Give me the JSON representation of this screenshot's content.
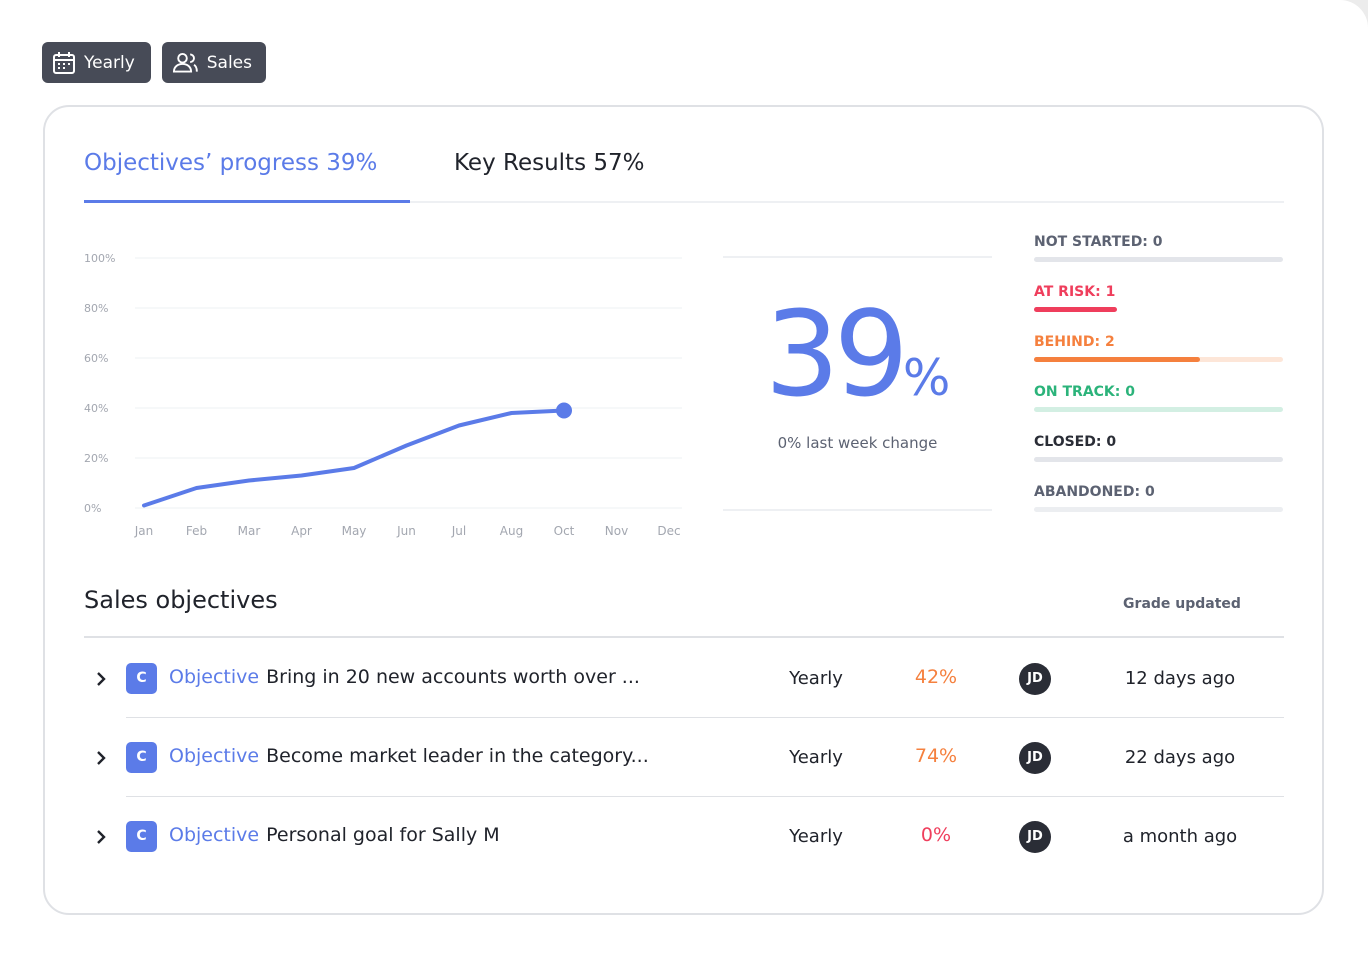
{
  "filters": [
    "Yearly",
    "Sales"
  ],
  "tabs": [
    {
      "label": "Objectives’ progress 39%",
      "active": true
    },
    {
      "label": "Key Results 57%",
      "active": false
    }
  ],
  "chart_data": {
    "type": "line",
    "categories": [
      "Jan",
      "Feb",
      "Mar",
      "Apr",
      "May",
      "Jun",
      "Jul",
      "Aug",
      "Oct",
      "Nov",
      "Dec"
    ],
    "series": [
      {
        "color": "#5b7be8",
        "values": [
          1,
          8,
          11,
          13,
          16,
          25,
          33,
          38,
          39,
          null,
          null
        ]
      }
    ],
    "ylim": [
      0,
      100
    ],
    "yticks": [
      {
        "value": 0,
        "label": "0%"
      },
      {
        "value": 20,
        "label": "20%"
      },
      {
        "value": 40,
        "label": "40%"
      },
      {
        "value": 60,
        "label": "60%"
      },
      {
        "value": 80,
        "label": "80%"
      },
      {
        "value": 100,
        "label": "100%"
      }
    ],
    "grid": true
  },
  "summary": {
    "value": "39",
    "unit": "%",
    "caption": "0% last week change"
  },
  "status_list": [
    {
      "label": "NOT STARTED: 0",
      "value": 0,
      "color": "#5c6272",
      "bar": "#e3e5ea",
      "track": "#e3e5ea"
    },
    {
      "label": "AT RISK: 1",
      "value": 1,
      "color": "#ef3e5c",
      "bar": "#ef3e5c",
      "track": "#ffffff"
    },
    {
      "label": "BEHIND: 2",
      "value": 2,
      "color": "#f5803e",
      "bar": "#f5803e",
      "track": "#fde6d8"
    },
    {
      "label": "ON TRACK: 0",
      "value": 0,
      "color": "#2bb37a",
      "bar": "#d3efe3",
      "track": "#d3efe3"
    },
    {
      "label": "CLOSED: 0",
      "value": 0,
      "color": "#2a2d36",
      "bar": "#e3e5ea",
      "track": "#e3e5ea"
    },
    {
      "label": "ABANDONED: 0",
      "value": 0,
      "color": "#5c6272",
      "bar": "#eceef1",
      "track": "#eceef1"
    }
  ],
  "table": {
    "title": "Sales objectives",
    "updated_header": "Grade updated",
    "rows": [
      {
        "badge": "C",
        "kind": "Objective",
        "title": "Bring in 20 new accounts worth over ...",
        "period": "Yearly",
        "progress": "42%",
        "progress_color": "#f5803e",
        "owner": "JD",
        "updated": "12 days ago"
      },
      {
        "badge": "C",
        "kind": "Objective",
        "title": "Become market leader in the category...",
        "period": "Yearly",
        "progress": "74%",
        "progress_color": "#f5803e",
        "owner": "JD",
        "updated": "22 days ago"
      },
      {
        "badge": "C",
        "kind": "Objective",
        "title": "Personal goal for Sally M",
        "period": "Yearly",
        "progress": "0%",
        "progress_color": "#ef3e5c",
        "owner": "JD",
        "updated": "a month ago"
      }
    ]
  }
}
